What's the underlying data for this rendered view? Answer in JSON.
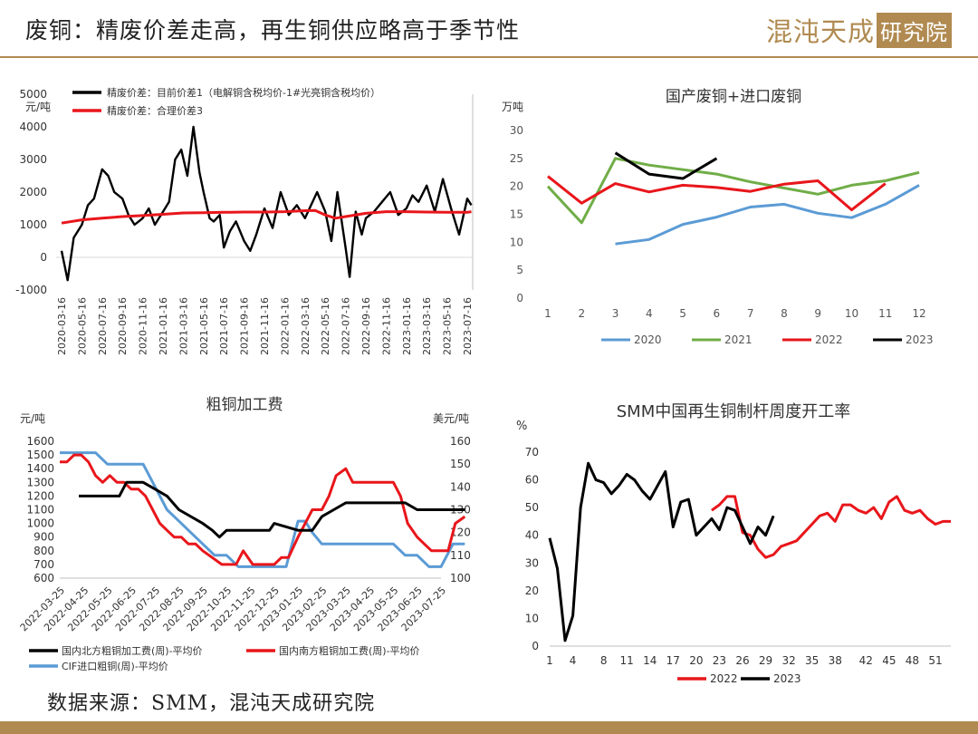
{
  "header": {
    "title": "废铜：精废价差走高，再生铜供应略高于季节性",
    "logo_main": "混沌天成",
    "logo_box": "研究院"
  },
  "footer": {
    "source": "数据来源：SMM，混沌天成研究院"
  },
  "colors": {
    "accent": "#b08a50",
    "black": "#000000",
    "red": "#e8161b",
    "blue": "#5b9bd5",
    "green": "#70ad47"
  },
  "chart_data": [
    {
      "id": "spread",
      "type": "line",
      "title": "",
      "yunit": "元/吨",
      "ylim": [
        -1000,
        5000
      ],
      "yticks": [
        -1000,
        0,
        1000,
        2000,
        3000,
        4000,
        5000
      ],
      "xticks": [
        "2020-03-16",
        "2020-05-16",
        "2020-07-16",
        "2020-09-16",
        "2020-11-16",
        "2021-01-16",
        "2021-03-16",
        "2021-05-16",
        "2021-07-16",
        "2021-09-16",
        "2021-11-16",
        "2022-01-16",
        "2022-03-16",
        "2022-05-16",
        "2022-07-16",
        "2022-09-16",
        "2022-11-16",
        "2023-01-16",
        "2023-03-16",
        "2023-05-16",
        "2023-07-16"
      ],
      "legend": [
        "精废价差：目前价差1（电解铜含税均价-1#光亮铜含税均价）",
        "精废价差：合理价差3"
      ],
      "series": [
        {
          "name": "精废价差：目前价差1（电解铜含税均价-1#光亮铜含税均价）",
          "color": "#000000",
          "x": [
            0,
            0.3,
            0.6,
            1,
            1.3,
            1.6,
            2,
            2.3,
            2.6,
            3,
            3.3,
            3.6,
            4,
            4.3,
            4.6,
            5,
            5.3,
            5.6,
            5.9,
            6.2,
            6.5,
            6.8,
            7,
            7.3,
            7.5,
            7.8,
            8,
            8.3,
            8.6,
            9,
            9.3,
            9.6,
            10,
            10.4,
            10.8,
            11.2,
            11.6,
            12,
            12.3,
            12.6,
            13,
            13.3,
            13.6,
            14,
            14.2,
            14.5,
            14.8,
            15,
            15.4,
            15.8,
            16.2,
            16.6,
            17,
            17.3,
            17.6,
            18,
            18.4,
            18.8,
            19.2,
            19.6,
            20,
            20.2
          ],
          "y": [
            200,
            -700,
            600,
            1000,
            1600,
            1800,
            2700,
            2500,
            2000,
            1800,
            1300,
            1000,
            1200,
            1500,
            1000,
            1400,
            1700,
            3000,
            3300,
            2500,
            4000,
            2600,
            2000,
            1200,
            1100,
            1300,
            300,
            800,
            1100,
            500,
            200,
            700,
            1500,
            900,
            2000,
            1300,
            1600,
            1200,
            1600,
            2000,
            1400,
            500,
            2000,
            300,
            -600,
            1400,
            700,
            1200,
            1400,
            1700,
            2000,
            1300,
            1500,
            1900,
            1700,
            2200,
            1400,
            2400,
            1500,
            700,
            1800,
            1600
          ]
        },
        {
          "name": "精废价差：合理价差3",
          "color": "#e8161b",
          "x": [
            0,
            1,
            2,
            3,
            4,
            5,
            6,
            7,
            8,
            9,
            10,
            11,
            12,
            12.5,
            13,
            13.5,
            14,
            15,
            16,
            17,
            18,
            19,
            20,
            20.2
          ],
          "y": [
            1050,
            1150,
            1200,
            1250,
            1280,
            1320,
            1360,
            1370,
            1380,
            1390,
            1390,
            1400,
            1430,
            1440,
            1300,
            1200,
            1250,
            1350,
            1400,
            1400,
            1390,
            1380,
            1380,
            1400
          ]
        }
      ]
    },
    {
      "id": "scrap",
      "type": "line",
      "title": "国产废铜+进口废铜",
      "yunit": "万吨",
      "ylim": [
        0,
        30
      ],
      "yticks": [
        0,
        5,
        10,
        15,
        20,
        25,
        30
      ],
      "x": [
        1,
        2,
        3,
        4,
        5,
        6,
        7,
        8,
        9,
        10,
        11,
        12
      ],
      "series": [
        {
          "name": "2020",
          "color": "#5b9bd5",
          "values": [
            null,
            null,
            9.7,
            10.5,
            13.2,
            14.5,
            16.3,
            16.8,
            15.2,
            14.4,
            16.8,
            20.2
          ]
        },
        {
          "name": "2021",
          "color": "#70ad47",
          "values": [
            20,
            13.5,
            25,
            23.8,
            23,
            22.2,
            20.8,
            19.7,
            18.6,
            20.2,
            21,
            22.5
          ]
        },
        {
          "name": "2022",
          "color": "#e8161b",
          "values": [
            21.8,
            17,
            20.5,
            19,
            20.2,
            19.8,
            19.1,
            20.4,
            21,
            15.8,
            20.5,
            null
          ]
        },
        {
          "name": "2023",
          "color": "#000000",
          "values": [
            null,
            null,
            26,
            22.2,
            21.4,
            25,
            null,
            null,
            null,
            null,
            null,
            null
          ]
        }
      ]
    },
    {
      "id": "tc",
      "type": "line",
      "title": "粗铜加工费",
      "yunit_left": "元/吨",
      "yunit_right": "美元/吨",
      "ylim_left": [
        600,
        1600
      ],
      "yticks_left": [
        600,
        700,
        800,
        900,
        1000,
        1100,
        1200,
        1300,
        1400,
        1500,
        1600
      ],
      "ylim_right": [
        100,
        160
      ],
      "yticks_right": [
        100,
        110,
        120,
        130,
        140,
        150,
        160
      ],
      "xticks": [
        "2022-03-25",
        "2022-04-25",
        "2022-05-25",
        "2022-06-25",
        "2022-07-25",
        "2022-08-25",
        "2022-09-25",
        "2022-10-25",
        "2022-11-25",
        "2022-12-25",
        "2023-01-25",
        "2023-02-25",
        "2023-03-25",
        "2023-04-25",
        "2023-05-25",
        "2023-06-25",
        "2023-07-25"
      ],
      "series": [
        {
          "name": "国内北方粗铜加工费(周)-平均价",
          "color": "#000000",
          "axis": "left",
          "x": [
            0.8,
            1.5,
            2.5,
            2.8,
            3.5,
            4,
            4.5,
            5,
            6,
            6.4,
            6.7,
            7,
            7.3,
            7.6,
            8,
            8.8,
            9,
            10,
            10.3,
            10.6,
            11,
            11.5,
            12,
            12.5,
            13,
            14,
            14.5,
            15,
            16,
            16.5,
            17
          ],
          "y": [
            1200,
            1200,
            1200,
            1300,
            1300,
            1250,
            1200,
            1100,
            1000,
            950,
            900,
            950,
            950,
            950,
            950,
            950,
            1000,
            950,
            950,
            950,
            1050,
            1100,
            1150,
            1150,
            1150,
            1150,
            1150,
            1100,
            1100,
            1100,
            1100
          ]
        },
        {
          "name": "国内南方粗铜加工费(周)-平均价",
          "color": "#e8161b",
          "axis": "left",
          "x": [
            0,
            0.3,
            0.6,
            0.9,
            1.2,
            1.5,
            1.8,
            2.1,
            2.4,
            2.7,
            3,
            3.3,
            3.6,
            3.9,
            4.2,
            4.5,
            4.8,
            5.1,
            5.4,
            5.7,
            6,
            6.4,
            6.8,
            7.1,
            7.4,
            7.7,
            8.1,
            8.4,
            8.7,
            9,
            9.3,
            9.6,
            10,
            10.3,
            10.6,
            11,
            11.3,
            11.6,
            12,
            12.3,
            12.6,
            13,
            13.3,
            13.6,
            14,
            14.3,
            14.6,
            15,
            15.3,
            15.6,
            16,
            16.3,
            16.6,
            17
          ],
          "y": [
            1450,
            1450,
            1500,
            1500,
            1450,
            1350,
            1300,
            1350,
            1300,
            1300,
            1250,
            1250,
            1200,
            1100,
            1000,
            950,
            900,
            900,
            850,
            850,
            800,
            750,
            700,
            700,
            700,
            800,
            700,
            700,
            700,
            700,
            750,
            750,
            900,
            1000,
            1100,
            1100,
            1200,
            1350,
            1400,
            1300,
            1300,
            1300,
            1300,
            1300,
            1300,
            1200,
            1000,
            900,
            850,
            800,
            800,
            800,
            1000,
            1050
          ]
        },
        {
          "name": "CIF进口粗铜(周)-平均价",
          "color": "#5b9bd5",
          "axis": "right",
          "x": [
            0,
            0.5,
            1,
            1.5,
            2,
            2.5,
            3,
            3.5,
            4,
            4.5,
            5,
            5.5,
            6,
            6.5,
            7,
            7.5,
            8,
            8.5,
            9,
            9.5,
            10,
            10.3,
            10.6,
            11,
            11.5,
            12,
            12.5,
            13,
            13.5,
            14,
            14.5,
            15,
            15.5,
            16,
            16.5,
            17
          ],
          "y": [
            155,
            155,
            155,
            155,
            150,
            150,
            150,
            150,
            140,
            130,
            125,
            120,
            115,
            110,
            110,
            105,
            105,
            105,
            105,
            105,
            125,
            125,
            120,
            115,
            115,
            115,
            115,
            115,
            115,
            115,
            110,
            110,
            105,
            105,
            115,
            115
          ]
        }
      ]
    },
    {
      "id": "rod",
      "type": "line",
      "title": "SMM中国再生铜制杆周度开工率",
      "yunit": "%",
      "ylim": [
        0,
        70
      ],
      "yticks": [
        0,
        10,
        20,
        30,
        40,
        50,
        60,
        70
      ],
      "xticks": [
        1,
        4,
        8,
        11,
        14,
        17,
        20,
        23,
        26,
        29,
        32,
        35,
        38,
        42,
        45,
        48,
        51
      ],
      "xlim": [
        1,
        53
      ],
      "series": [
        {
          "name": "2022",
          "color": "#e8161b",
          "x": [
            22,
            23,
            24,
            25,
            26,
            27,
            28,
            29,
            30,
            31,
            32,
            33,
            34,
            35,
            36,
            37,
            38,
            39,
            40,
            41,
            42,
            43,
            44,
            45,
            46,
            47,
            48,
            49,
            50,
            51,
            52,
            53
          ],
          "y": [
            49,
            51,
            54,
            54,
            41,
            40,
            35,
            32,
            33,
            36,
            37,
            38,
            41,
            44,
            47,
            48,
            45,
            51,
            51,
            49,
            48,
            50,
            46,
            52,
            54,
            49,
            48,
            49,
            46,
            44,
            45,
            45
          ]
        },
        {
          "name": "2023",
          "color": "#000000",
          "x": [
            1,
            2,
            3,
            4,
            5,
            6,
            7,
            8,
            9,
            10,
            11,
            12,
            13,
            14,
            15,
            16,
            17,
            18,
            19,
            20,
            21,
            22,
            23,
            24,
            25,
            26,
            27,
            28,
            29,
            30,
            31
          ],
          "y": [
            39,
            28,
            2,
            11,
            50,
            66,
            60,
            59,
            55,
            58,
            62,
            60,
            56,
            53,
            58,
            63,
            43,
            52,
            53,
            40,
            43,
            46,
            42,
            50,
            49,
            43,
            37,
            43,
            40,
            47,
            null
          ]
        }
      ]
    }
  ]
}
